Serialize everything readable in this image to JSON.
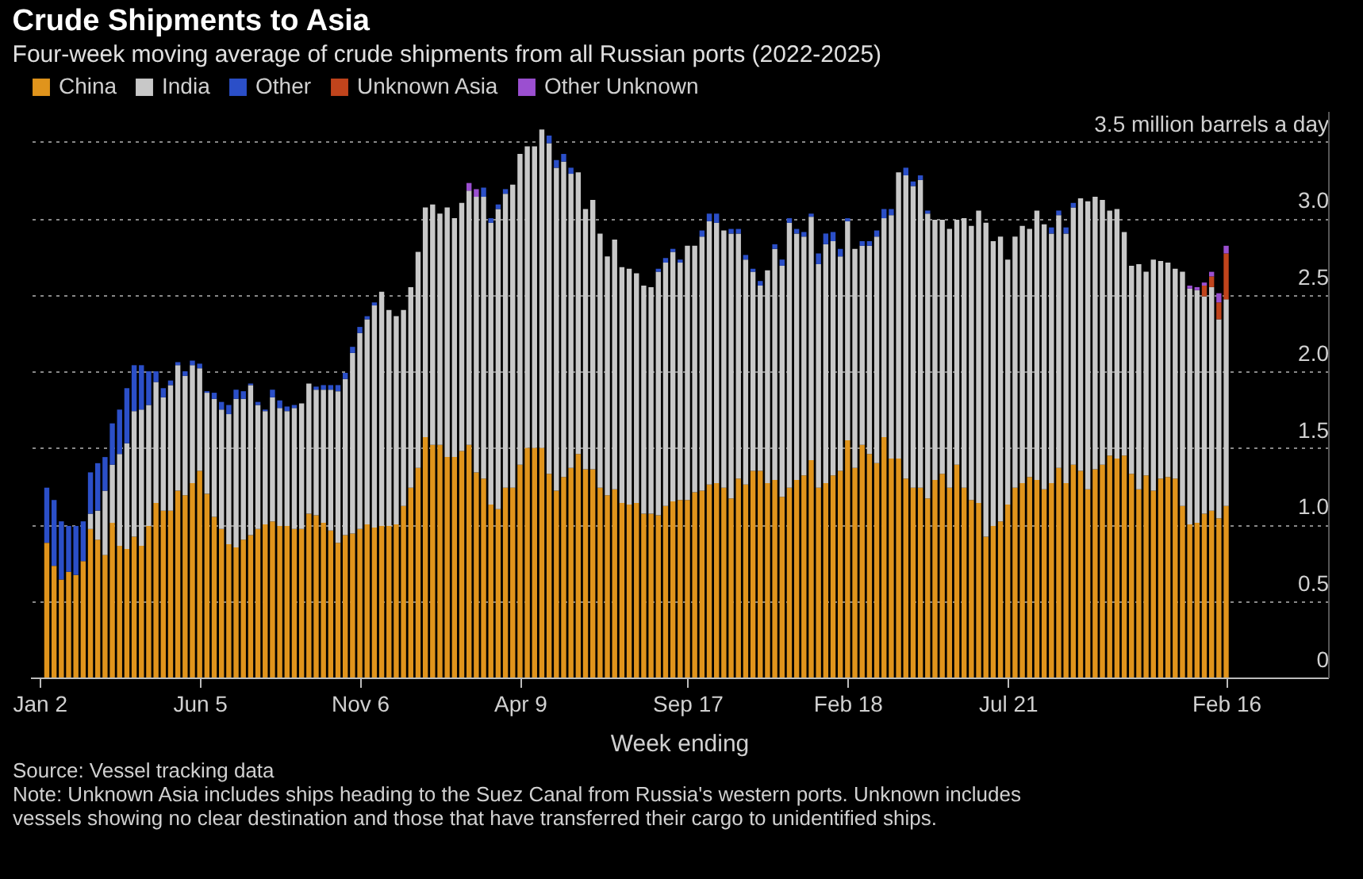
{
  "chart_data": {
    "type": "bar",
    "stacked": true,
    "title": "Crude Shipments to Asia",
    "subtitle": "Four-week moving average of crude shipments from all Russian ports (2022-2025)",
    "xlabel": "Week ending",
    "annotations": [
      "Source: Vessel tracking data",
      "Note: Unknown Asia includes ships heading to the Suez Canal from Russia's western ports. Unknown includes vessels showing no clear destination and those that have transferred their cargo to unidentified ships."
    ],
    "legend": "top left",
    "grid": "y",
    "x": [
      "2022-01-09",
      "2022-01-16",
      "2022-01-23",
      "2022-01-30",
      "2022-02-06",
      "2022-02-13",
      "2022-02-20",
      "2022-02-27",
      "2022-03-06",
      "2022-03-13",
      "2022-03-20",
      "2022-03-27",
      "2022-04-03",
      "2022-04-10",
      "2022-04-17",
      "2022-04-24",
      "2022-05-01",
      "2022-05-08",
      "2022-05-15",
      "2022-05-22",
      "2022-05-29",
      "2022-06-05",
      "2022-06-12",
      "2022-06-19",
      "2022-06-26",
      "2022-07-03",
      "2022-07-10",
      "2022-07-17",
      "2022-07-24",
      "2022-07-31",
      "2022-08-07",
      "2022-08-14",
      "2022-08-21",
      "2022-08-28",
      "2022-09-04",
      "2022-09-11",
      "2022-09-18",
      "2022-09-25",
      "2022-10-02",
      "2022-10-09",
      "2022-10-16",
      "2022-10-23",
      "2022-10-30",
      "2022-11-06",
      "2022-11-13",
      "2022-11-20",
      "2022-11-27",
      "2022-12-04",
      "2022-12-11",
      "2022-12-18",
      "2022-12-25",
      "2023-01-01",
      "2023-01-08",
      "2023-01-15",
      "2023-01-22",
      "2023-01-29",
      "2023-02-05",
      "2023-02-12",
      "2023-02-19",
      "2023-02-26",
      "2023-03-05",
      "2023-03-12",
      "2023-03-19",
      "2023-03-26",
      "2023-04-02",
      "2023-04-09",
      "2023-04-16",
      "2023-04-23",
      "2023-04-30",
      "2023-05-07",
      "2023-05-14",
      "2023-05-21",
      "2023-05-28",
      "2023-06-04",
      "2023-06-11",
      "2023-06-18",
      "2023-06-25",
      "2023-07-02",
      "2023-07-09",
      "2023-07-16",
      "2023-07-23",
      "2023-07-30",
      "2023-08-06",
      "2023-08-13",
      "2023-08-20",
      "2023-08-27",
      "2023-09-03",
      "2023-09-10",
      "2023-09-17",
      "2023-09-24",
      "2023-10-01",
      "2023-10-08",
      "2023-10-15",
      "2023-10-22",
      "2023-10-29",
      "2023-11-05",
      "2023-11-12",
      "2023-11-19",
      "2023-11-26",
      "2023-12-03",
      "2023-12-10",
      "2023-12-17",
      "2023-12-24",
      "2023-12-31",
      "2024-01-07",
      "2024-01-14",
      "2024-01-21",
      "2024-01-28",
      "2024-02-04",
      "2024-02-11",
      "2024-02-18",
      "2024-02-25",
      "2024-03-03",
      "2024-03-10",
      "2024-03-17",
      "2024-03-24",
      "2024-03-31",
      "2024-04-07",
      "2024-04-14",
      "2024-04-21",
      "2024-04-28",
      "2024-05-05",
      "2024-05-12",
      "2024-05-19",
      "2024-05-26",
      "2024-06-02",
      "2024-06-09",
      "2024-06-16",
      "2024-06-23",
      "2024-06-30",
      "2024-07-07",
      "2024-07-14",
      "2024-07-21",
      "2024-07-28",
      "2024-08-04",
      "2024-08-11",
      "2024-08-18",
      "2024-08-25",
      "2024-09-01",
      "2024-09-08",
      "2024-09-15",
      "2024-09-22",
      "2024-09-29",
      "2024-10-06",
      "2024-10-13",
      "2024-10-20",
      "2024-10-27",
      "2024-11-03",
      "2024-11-10",
      "2024-11-17",
      "2024-11-24",
      "2024-12-01",
      "2024-12-08",
      "2024-12-15",
      "2024-12-22",
      "2024-12-29",
      "2025-01-05",
      "2025-01-12",
      "2025-01-19",
      "2025-01-26",
      "2025-02-02",
      "2025-02-09",
      "2025-02-16"
    ],
    "xlim": [
      "2021-12-24",
      "2025-05-25"
    ],
    "xticks": [
      {
        "value": "2022-01-02",
        "label": "Jan 2"
      },
      {
        "value": "2022-06-05",
        "label": "Jun 5"
      },
      {
        "value": "2022-11-06",
        "label": "Nov 6"
      },
      {
        "value": "2023-04-09",
        "label": "Apr 9"
      },
      {
        "value": "2023-09-17",
        "label": "Sep 17"
      },
      {
        "value": "2024-02-18",
        "label": "Feb 18"
      },
      {
        "value": "2024-07-21",
        "label": "Jul 21"
      },
      {
        "value": "2025-02-16",
        "label": "Feb 16"
      }
    ],
    "ylim": [
      0,
      3.7
    ],
    "yticks": [
      0,
      0.5,
      {
        "value": 1,
        "label": "1.0"
      },
      1.5,
      {
        "value": 2,
        "label": "2.0"
      },
      2.5,
      {
        "value": 3,
        "label": "3.0"
      },
      {
        "value": 3.5,
        "label": "3.5 million barrels a day"
      }
    ],
    "series": [
      {
        "name": "China",
        "color": "#e0941c",
        "values": [
          0.88,
          0.73,
          0.64,
          0.69,
          0.67,
          0.76,
          0.97,
          0.9,
          0.8,
          1.01,
          0.86,
          0.84,
          0.92,
          0.86,
          0.99,
          1.14,
          1.09,
          1.09,
          1.22,
          1.19,
          1.27,
          1.35,
          1.2,
          1.05,
          0.97,
          0.87,
          0.85,
          0.9,
          0.93,
          0.97,
          1.0,
          1.02,
          0.99,
          0.99,
          0.97,
          0.97,
          1.07,
          1.06,
          1.01,
          0.96,
          0.88,
          0.93,
          0.94,
          0.97,
          1.0,
          0.98,
          0.99,
          0.99,
          1.0,
          1.12,
          1.24,
          1.37,
          1.57,
          1.52,
          1.52,
          1.44,
          1.44,
          1.48,
          1.52,
          1.34,
          1.3,
          1.13,
          1.1,
          1.24,
          1.24,
          1.39,
          1.5,
          1.5,
          1.5,
          1.33,
          1.22,
          1.31,
          1.37,
          1.46,
          1.36,
          1.36,
          1.24,
          1.19,
          1.23,
          1.14,
          1.13,
          1.14,
          1.07,
          1.07,
          1.06,
          1.12,
          1.15,
          1.16,
          1.16,
          1.21,
          1.22,
          1.26,
          1.27,
          1.24,
          1.17,
          1.3,
          1.26,
          1.35,
          1.35,
          1.27,
          1.29,
          1.18,
          1.24,
          1.29,
          1.32,
          1.42,
          1.24,
          1.27,
          1.32,
          1.35,
          1.55,
          1.37,
          1.52,
          1.46,
          1.4,
          1.57,
          1.43,
          1.43,
          1.3,
          1.24,
          1.24,
          1.17,
          1.29,
          1.33,
          1.24,
          1.39,
          1.24,
          1.16,
          1.14,
          0.92,
          0.99,
          1.02,
          1.13,
          1.24,
          1.27,
          1.31,
          1.29,
          1.23,
          1.27,
          1.37,
          1.27,
          1.39,
          1.35,
          1.23,
          1.36,
          1.39,
          1.45,
          1.43,
          1.45,
          1.33,
          1.23,
          1.32,
          1.22,
          1.3,
          1.31,
          1.3,
          1.12,
          1.0,
          1.01,
          1.07,
          1.09,
          1.04,
          1.12
        ]
      },
      {
        "name": "India",
        "color": "#c8c8c8",
        "values": [
          null,
          null,
          null,
          null,
          null,
          null,
          0.1,
          0.19,
          0.42,
          0.38,
          0.6,
          0.69,
          0.82,
          0.89,
          0.79,
          0.79,
          0.74,
          0.82,
          0.82,
          0.78,
          0.77,
          0.67,
          0.66,
          0.77,
          0.78,
          0.85,
          0.97,
          0.92,
          0.98,
          0.81,
          0.74,
          0.81,
          0.77,
          0.75,
          0.79,
          0.82,
          0.85,
          0.82,
          0.87,
          0.92,
          0.99,
          1.02,
          1.18,
          1.28,
          1.34,
          1.45,
          1.53,
          1.41,
          1.36,
          1.28,
          1.31,
          1.41,
          1.5,
          1.57,
          1.51,
          1.63,
          1.56,
          1.62,
          1.66,
          1.8,
          1.84,
          1.84,
          1.96,
          1.92,
          1.98,
          2.03,
          1.97,
          1.97,
          2.08,
          2.16,
          2.11,
          2.06,
          1.92,
          1.84,
          1.7,
          1.76,
          1.66,
          1.56,
          1.63,
          1.54,
          1.54,
          1.5,
          1.49,
          1.48,
          1.59,
          1.59,
          1.63,
          1.55,
          1.66,
          1.61,
          1.66,
          1.72,
          1.7,
          1.68,
          1.73,
          1.6,
          1.47,
          1.3,
          1.21,
          1.39,
          1.51,
          1.51,
          1.73,
          1.61,
          1.56,
          1.59,
          1.46,
          1.56,
          1.53,
          1.4,
          1.43,
          1.43,
          1.3,
          1.36,
          1.48,
          1.43,
          1.59,
          1.87,
          1.98,
          1.97,
          2.01,
          1.86,
          1.7,
          1.66,
          1.69,
          1.6,
          1.76,
          1.79,
          1.91,
          2.05,
          1.86,
          1.86,
          1.6,
          1.64,
          1.68,
          1.62,
          1.76,
          1.73,
          1.63,
          1.65,
          1.63,
          1.68,
          1.78,
          1.88,
          1.78,
          1.73,
          1.6,
          1.63,
          1.46,
          1.36,
          1.47,
          1.33,
          1.51,
          1.42,
          1.4,
          1.37,
          1.53,
          1.54,
          1.52,
          1.42,
          1.46,
          1.3,
          1.35
        ]
      },
      {
        "name": "Other",
        "color": "#2b4fc8",
        "values": [
          0.36,
          0.43,
          0.38,
          0.3,
          0.32,
          0.26,
          0.27,
          0.31,
          0.22,
          0.27,
          0.29,
          0.36,
          0.3,
          0.29,
          0.22,
          0.07,
          0.06,
          0.03,
          0.02,
          0.03,
          0.03,
          0.03,
          0.01,
          0.04,
          0.05,
          0.06,
          0.06,
          0.05,
          0.01,
          0.02,
          0.01,
          0.05,
          0.05,
          0.03,
          0.02,
          null,
          null,
          0.02,
          0.03,
          0.03,
          0.04,
          0.04,
          0.04,
          0.04,
          0.02,
          0.02,
          null,
          null,
          null,
          null,
          null,
          null,
          null,
          null,
          null,
          null,
          null,
          null,
          null,
          null,
          0.06,
          0.03,
          0.03,
          0.03,
          null,
          null,
          null,
          null,
          null,
          0.05,
          0.05,
          0.05,
          0.04,
          null,
          null,
          null,
          null,
          null,
          null,
          null,
          null,
          null,
          null,
          null,
          0.02,
          0.03,
          0.02,
          0.02,
          null,
          null,
          0.04,
          0.05,
          0.06,
          null,
          0.03,
          0.03,
          0.03,
          0.02,
          0.03,
          null,
          0.03,
          0.04,
          0.03,
          0.03,
          0.03,
          0.02,
          0.07,
          0.07,
          0.06,
          0.05,
          0.02,
          null,
          0.03,
          0.03,
          0.04,
          0.06,
          0.04,
          null,
          0.05,
          0.03,
          0.03,
          0.02,
          null,
          null,
          null,
          null,
          null,
          null,
          null,
          null,
          null,
          null,
          null,
          null,
          null,
          null,
          null,
          null,
          0.04,
          0.03,
          0.04,
          0.03,
          null,
          null,
          null,
          null,
          null,
          null,
          null,
          null,
          null,
          null,
          null,
          null,
          null,
          null,
          null,
          null,
          null,
          null,
          null,
          null,
          null
        ]
      },
      {
        "name": "Unknown Asia",
        "color": "#c0441c",
        "values": [
          null,
          null,
          null,
          null,
          null,
          null,
          null,
          null,
          null,
          null,
          null,
          null,
          null,
          null,
          null,
          null,
          null,
          null,
          null,
          null,
          null,
          null,
          null,
          null,
          null,
          null,
          null,
          null,
          null,
          null,
          null,
          null,
          null,
          null,
          null,
          null,
          null,
          null,
          null,
          null,
          null,
          null,
          null,
          null,
          null,
          null,
          null,
          null,
          null,
          null,
          null,
          null,
          null,
          null,
          null,
          null,
          null,
          null,
          null,
          null,
          null,
          null,
          null,
          null,
          null,
          null,
          null,
          null,
          null,
          null,
          null,
          null,
          null,
          null,
          null,
          null,
          null,
          null,
          null,
          null,
          null,
          null,
          null,
          null,
          null,
          null,
          null,
          null,
          null,
          null,
          null,
          null,
          null,
          null,
          null,
          null,
          null,
          null,
          null,
          null,
          null,
          null,
          null,
          null,
          null,
          null,
          null,
          null,
          null,
          null,
          null,
          null,
          null,
          null,
          null,
          null,
          null,
          null,
          null,
          null,
          null,
          null,
          null,
          null,
          null,
          null,
          null,
          null,
          null,
          null,
          null,
          null,
          null,
          null,
          null,
          null,
          null,
          null,
          null,
          null,
          null,
          null,
          null,
          null,
          null,
          null,
          null,
          null,
          null,
          null,
          null,
          null,
          null,
          null,
          null,
          null,
          null,
          null,
          null,
          0.07,
          0.07,
          0.11,
          0.3
        ]
      },
      {
        "name": "Other Unknown",
        "color": "#9b4fd0",
        "values": [
          null,
          null,
          null,
          null,
          null,
          null,
          null,
          null,
          null,
          null,
          null,
          null,
          null,
          null,
          null,
          null,
          null,
          null,
          null,
          null,
          null,
          null,
          null,
          null,
          null,
          null,
          null,
          null,
          null,
          null,
          null,
          null,
          null,
          null,
          null,
          null,
          null,
          null,
          null,
          null,
          null,
          null,
          null,
          null,
          null,
          null,
          null,
          null,
          null,
          null,
          null,
          null,
          null,
          null,
          null,
          null,
          null,
          null,
          0.05,
          0.05,
          null,
          null,
          null,
          null,
          null,
          null,
          null,
          null,
          null,
          null,
          null,
          null,
          null,
          null,
          null,
          null,
          null,
          null,
          null,
          null,
          null,
          null,
          null,
          null,
          null,
          null,
          null,
          null,
          null,
          null,
          null,
          null,
          null,
          null,
          null,
          null,
          null,
          null,
          null,
          null,
          null,
          null,
          null,
          null,
          null,
          null,
          null,
          null,
          null,
          null,
          null,
          null,
          null,
          null,
          null,
          null,
          null,
          null,
          null,
          null,
          null,
          null,
          null,
          null,
          null,
          null,
          null,
          null,
          null,
          null,
          null,
          null,
          null,
          null,
          null,
          null,
          null,
          null,
          null,
          null,
          null,
          null,
          null,
          null,
          null,
          null,
          null,
          null,
          null,
          null,
          null,
          null,
          null,
          null,
          null,
          null,
          null,
          0.02,
          0.02,
          0.02,
          0.03,
          0.06,
          0.05
        ]
      }
    ]
  }
}
